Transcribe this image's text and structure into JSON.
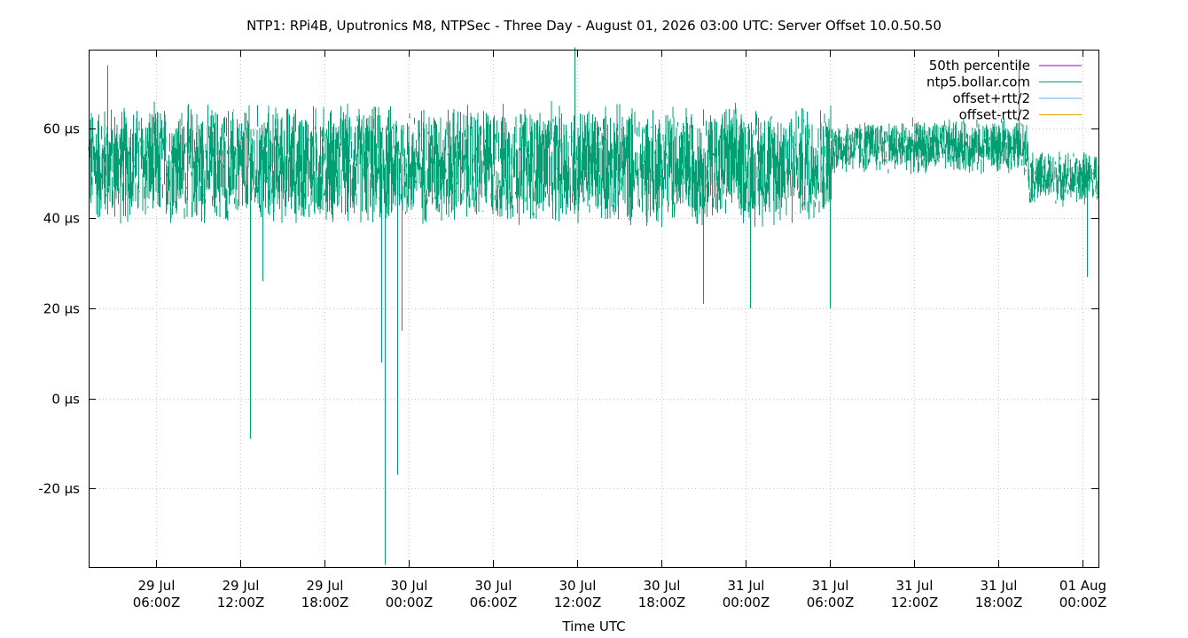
{
  "chart_data": {
    "type": "line",
    "title": "NTP1: RPi4B, Uputronics M8, NTPSec - Three Day - August 01, 2026 03:00 UTC: Server Offset 10.0.50.50",
    "xlabel": "Time UTC",
    "ylabel": "",
    "x_start": "2026-07-29T01:10Z",
    "x_end": "2026-08-01T01:10Z",
    "ylim": [
      -37.5,
      77.5
    ],
    "y_unit": "µs",
    "grid": true,
    "legend_position": "top-right",
    "y_ticks": [
      {
        "value": 60,
        "label": "60 µs"
      },
      {
        "value": 40,
        "label": "40 µs"
      },
      {
        "value": 20,
        "label": "20 µs"
      },
      {
        "value": 0,
        "label": "0 µs"
      },
      {
        "value": -20,
        "label": "-20 µs"
      }
    ],
    "x_ticks": [
      {
        "t": "2026-07-29T06:00Z",
        "line1": "29 Jul",
        "line2": "06:00Z"
      },
      {
        "t": "2026-07-29T12:00Z",
        "line1": "29 Jul",
        "line2": "12:00Z"
      },
      {
        "t": "2026-07-29T18:00Z",
        "line1": "29 Jul",
        "line2": "18:00Z"
      },
      {
        "t": "2026-07-30T00:00Z",
        "line1": "30 Jul",
        "line2": "00:00Z"
      },
      {
        "t": "2026-07-30T06:00Z",
        "line1": "30 Jul",
        "line2": "06:00Z"
      },
      {
        "t": "2026-07-30T12:00Z",
        "line1": "30 Jul",
        "line2": "12:00Z"
      },
      {
        "t": "2026-07-30T18:00Z",
        "line1": "30 Jul",
        "line2": "18:00Z"
      },
      {
        "t": "2026-07-31T00:00Z",
        "line1": "31 Jul",
        "line2": "00:00Z"
      },
      {
        "t": "2026-07-31T06:00Z",
        "line1": "31 Jul",
        "line2": "06:00Z"
      },
      {
        "t": "2026-07-31T12:00Z",
        "line1": "31 Jul",
        "line2": "12:00Z"
      },
      {
        "t": "2026-07-31T18:00Z",
        "line1": "31 Jul",
        "line2": "18:00Z"
      },
      {
        "t": "2026-08-01T00:00Z",
        "line1": "01 Aug",
        "line2": "00:00Z"
      }
    ],
    "series": [
      {
        "name": "50th percentile",
        "color": "#9400d3",
        "values": []
      },
      {
        "name": "ntp5.bollar.com",
        "color": "#009e73",
        "segments": [
          {
            "from": "2026-07-29T01:10Z",
            "to": "2026-07-31T06:10Z",
            "center": 52,
            "low": 38,
            "high": 67
          },
          {
            "from": "2026-07-31T06:10Z",
            "to": "2026-07-31T20:10Z",
            "center": 56,
            "low": 50,
            "high": 63
          },
          {
            "from": "2026-07-31T20:10Z",
            "to": "2026-08-01T01:10Z",
            "center": 49,
            "low": 43,
            "high": 56
          }
        ],
        "spikes": [
          {
            "t": "2026-07-29T02:30Z",
            "y": 74
          },
          {
            "t": "2026-07-29T12:40Z",
            "y": -9
          },
          {
            "t": "2026-07-29T13:35Z",
            "y": 26
          },
          {
            "t": "2026-07-29T22:00Z",
            "y": 8
          },
          {
            "t": "2026-07-29T22:15Z",
            "y": -37
          },
          {
            "t": "2026-07-29T23:10Z",
            "y": -17
          },
          {
            "t": "2026-07-29T23:30Z",
            "y": 15
          },
          {
            "t": "2026-07-30T11:50Z",
            "y": 78
          },
          {
            "t": "2026-07-30T21:00Z",
            "y": 21
          },
          {
            "t": "2026-07-31T00:20Z",
            "y": 20
          },
          {
            "t": "2026-07-31T06:00Z",
            "y": 20
          },
          {
            "t": "2026-07-31T19:30Z",
            "y": 75
          },
          {
            "t": "2026-08-01T00:20Z",
            "y": 27
          }
        ]
      },
      {
        "name": "offset+rtt/2",
        "color": "#56b4e9",
        "values": []
      },
      {
        "name": "offset-rtt/2",
        "color": "#e69f00",
        "values": []
      }
    ]
  }
}
